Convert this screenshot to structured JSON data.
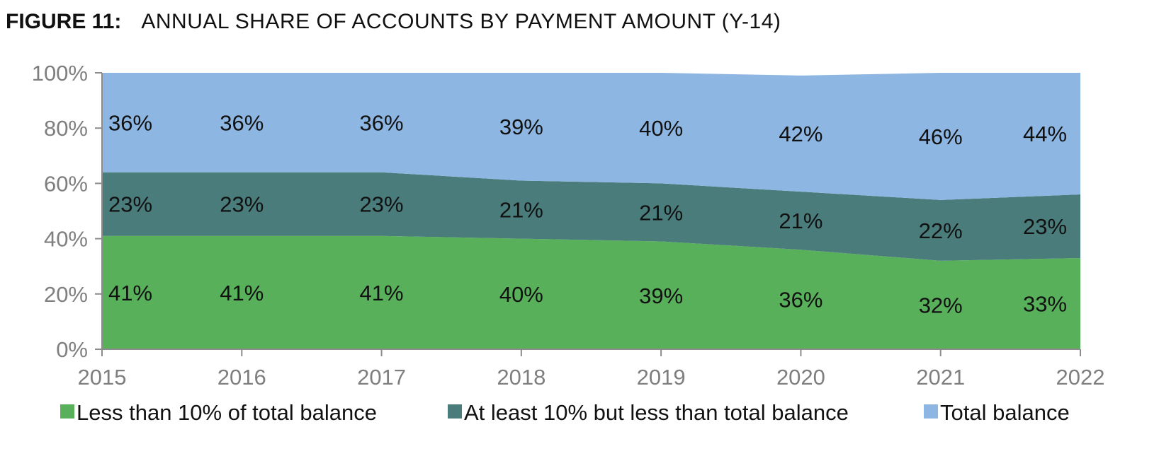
{
  "figure": {
    "label": "FIGURE 11:",
    "title": "ANNUAL SHARE OF ACCOUNTS BY PAYMENT AMOUNT (Y-14)"
  },
  "chart_data": {
    "type": "area",
    "stacked": true,
    "x": [
      "2015",
      "2016",
      "2017",
      "2018",
      "2019",
      "2020",
      "2021",
      "2022"
    ],
    "series": [
      {
        "name": "Less than 10% of total balance",
        "color": "#58b05a",
        "values": [
          41,
          41,
          41,
          40,
          39,
          36,
          32,
          33
        ],
        "labels": [
          "41%",
          "41%",
          "41%",
          "40%",
          "39%",
          "36%",
          "32%",
          "33%"
        ]
      },
      {
        "name": "At least 10% but less than total balance",
        "color": "#4a7c7c",
        "values": [
          23,
          23,
          23,
          21,
          21,
          21,
          22,
          23
        ],
        "labels": [
          "23%",
          "23%",
          "23%",
          "21%",
          "21%",
          "21%",
          "22%",
          "23%"
        ]
      },
      {
        "name": "Total balance",
        "color": "#8db6e2",
        "values": [
          36,
          36,
          36,
          39,
          40,
          42,
          46,
          44
        ],
        "labels": [
          "36%",
          "36%",
          "36%",
          "39%",
          "40%",
          "42%",
          "46%",
          "44%"
        ]
      }
    ],
    "ylim": [
      0,
      100
    ],
    "yticks": [
      "0%",
      "20%",
      "40%",
      "60%",
      "80%",
      "100%"
    ],
    "legend_position": "bottom",
    "grid": false
  }
}
